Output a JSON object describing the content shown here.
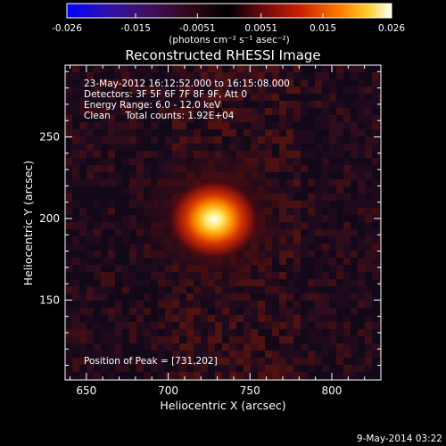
{
  "chart_data": {
    "type": "heatmap",
    "title": "Reconstructed RHESSI Image",
    "xlabel": "Heliocentric X (arcsec)",
    "ylabel": "Heliocentric Y (arcsec)",
    "xlim": [
      637,
      830
    ],
    "ylim": [
      101,
      294
    ],
    "x_ticks": [
      650,
      700,
      750,
      800
    ],
    "y_ticks": [
      150,
      200,
      250
    ],
    "colorbar": {
      "min": -0.026,
      "max": 0.026,
      "tick_values": [
        -0.026,
        -0.015,
        -0.0051,
        0.0051,
        0.015,
        0.026
      ],
      "tick_labels": [
        "-0.026",
        "-0.015",
        "-0.0051",
        "0.0051",
        "0.015",
        "0.026"
      ],
      "label": "(photons cm⁻² s⁻¹ asec⁻²)"
    },
    "peak": {
      "x": 731,
      "y": 202,
      "value": 0.026
    },
    "annotations": [
      "23-May-2012 16:12:52.000 to 16:15:08.000",
      "Detectors: 3F 5F 6F 7F 8F 9F, Att 0",
      "Energy Range: 6.0 - 12.0 keV",
      "Clean     Total counts: 1.92E+04"
    ],
    "peak_label": "Position of Peak = [731,202]"
  },
  "footer": {
    "date": "9-May-2014 03:22"
  }
}
